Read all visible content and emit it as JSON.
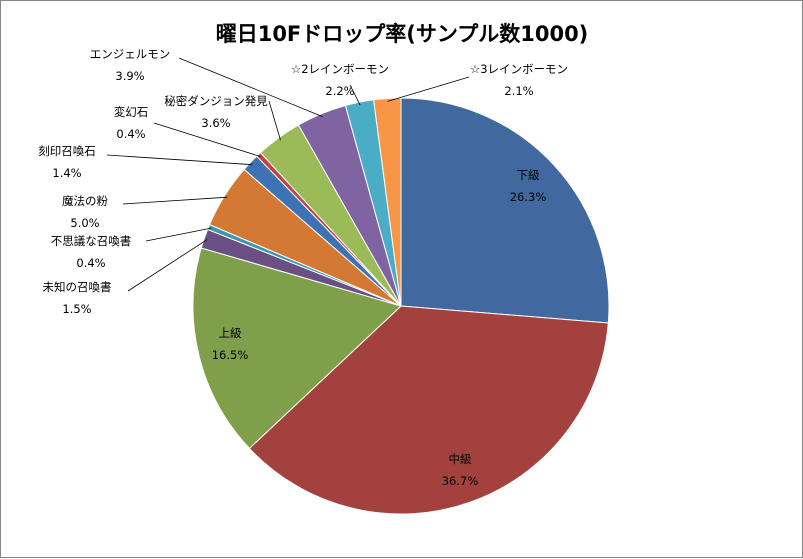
{
  "chart_data": {
    "type": "pie",
    "title": "曜日10Fドロップ率(サンプル数1000)",
    "slices": [
      {
        "label": "下級",
        "value": 26.3,
        "pct_text": "26.3%",
        "color": "#4169A0"
      },
      {
        "label": "中級",
        "value": 36.7,
        "pct_text": "36.7%",
        "color": "#A3413E"
      },
      {
        "label": "上級",
        "value": 16.5,
        "pct_text": "16.5%",
        "color": "#809F4A"
      },
      {
        "label": "未知の召喚書",
        "value": 1.5,
        "pct_text": "1.5%",
        "color": "#6A4F85"
      },
      {
        "label": "不思議な召喚書",
        "value": 0.4,
        "pct_text": "0.4%",
        "color": "#3A98B1"
      },
      {
        "label": "魔法の粉",
        "value": 5.0,
        "pct_text": "5.0%",
        "color": "#D47934"
      },
      {
        "label": "刻印召喚石",
        "value": 1.4,
        "pct_text": "1.4%",
        "color": "#3F72B5"
      },
      {
        "label": "変幻石",
        "value": 0.4,
        "pct_text": "0.4%",
        "color": "#C0433F"
      },
      {
        "label": "秘密ダンジョン発見",
        "value": 3.6,
        "pct_text": "3.6%",
        "color": "#9BBB59"
      },
      {
        "label": "エンジェルモン",
        "value": 3.9,
        "pct_text": "3.9%",
        "color": "#8064A2"
      },
      {
        "label": "☆2レインボーモン",
        "value": 2.2,
        "pct_text": "2.2%",
        "color": "#4BACC6"
      },
      {
        "label": "☆3レインボーモン",
        "value": 2.1,
        "pct_text": "2.1%",
        "color": "#F79646"
      }
    ],
    "start_angle_deg": 0,
    "direction": "clockwise",
    "legend": "none",
    "data_labels": "category name and percentage"
  }
}
